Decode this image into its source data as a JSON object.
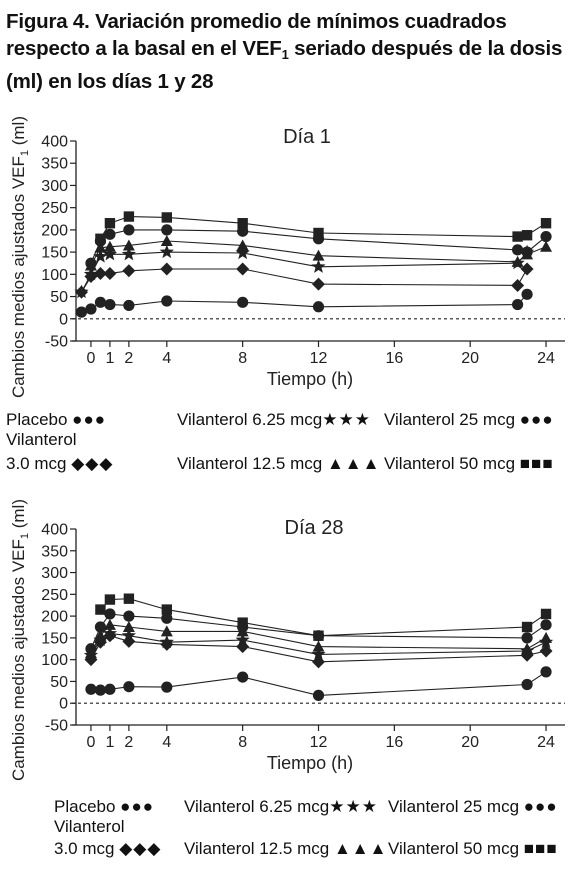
{
  "figure": {
    "title_part1": "Figura 4. Variación promedio de mínimos cuadrados respecto a la basal en el VEF",
    "title_sub": "1",
    "title_part2": " seriado después de la dosis (ml) en los días 1 y 28"
  },
  "colors": {
    "ink": "#222222",
    "background": "#ffffff"
  },
  "legend": {
    "items": [
      {
        "label": "Placebo",
        "marker": "circle"
      },
      {
        "label": "Vilanterol 6.25 mcg",
        "marker": "star"
      },
      {
        "label": "Vilanterol 25 mcg",
        "marker": "circle"
      },
      {
        "label": "Vilanterol",
        "label2": "3.0 mcg",
        "marker": "diamond"
      },
      {
        "label": "Vilanterol 12.5 mcg",
        "marker": "triangle"
      },
      {
        "label": "Vilanterol 50 mcg",
        "marker": "square"
      }
    ]
  },
  "chart_data": [
    {
      "type": "line",
      "title": "Día 1",
      "xlabel": "Tiempo (h)",
      "ylabel": "Cambios medios ajustados VEF",
      "ylabel_sub": "1",
      "ylabel_suffix": " (ml)",
      "xlim": [
        -1,
        25
      ],
      "ylim": [
        -50,
        400
      ],
      "xticks": [
        0,
        1,
        2,
        4,
        8,
        12,
        16,
        20,
        24
      ],
      "yticks": [
        -50,
        0,
        50,
        100,
        150,
        200,
        250,
        300,
        350,
        400
      ],
      "reference_line": 0,
      "x": [
        -0.5,
        0,
        0.5,
        1,
        2,
        4,
        8,
        12,
        22.5,
        23,
        24
      ],
      "series": [
        {
          "name": "Placebo",
          "marker": "circle",
          "values": [
            15,
            22,
            37,
            32,
            30,
            40,
            37,
            27,
            32,
            55,
            null
          ]
        },
        {
          "name": "Vilanterol 3.0 mcg",
          "marker": "diamond",
          "values": [
            60,
            95,
            102,
            102,
            108,
            112,
            112,
            78,
            75,
            112,
            null
          ]
        },
        {
          "name": "Vilanterol 6.25 mcg",
          "marker": "star",
          "values": [
            60,
            100,
            140,
            145,
            145,
            150,
            148,
            117,
            125,
            150,
            null
          ]
        },
        {
          "name": "Vilanterol 12.5 mcg",
          "marker": "triangle",
          "values": [
            null,
            120,
            160,
            162,
            165,
            175,
            165,
            142,
            128,
            145,
            162
          ]
        },
        {
          "name": "Vilanterol 25 mcg",
          "marker": "circle",
          "values": [
            null,
            125,
            175,
            190,
            200,
            200,
            197,
            180,
            155,
            150,
            185
          ]
        },
        {
          "name": "Vilanterol 50 mcg",
          "marker": "square",
          "values": [
            null,
            null,
            180,
            215,
            230,
            228,
            215,
            193,
            185,
            188,
            215
          ]
        }
      ]
    },
    {
      "type": "line",
      "title": "Día 28",
      "xlabel": "Tiempo (h)",
      "ylabel": "Cambios medios ajustados VEF",
      "ylabel_sub": "1",
      "ylabel_suffix": " (ml)",
      "xlim": [
        -1,
        25
      ],
      "ylim": [
        -50,
        400
      ],
      "xticks": [
        0,
        1,
        2,
        4,
        8,
        12,
        16,
        20,
        24
      ],
      "yticks": [
        -50,
        0,
        50,
        100,
        150,
        200,
        250,
        300,
        350,
        400
      ],
      "reference_line": 0,
      "x": [
        0,
        0.5,
        1,
        2,
        4,
        8,
        12,
        23,
        24
      ],
      "series": [
        {
          "name": "Placebo",
          "marker": "circle",
          "values": [
            32,
            30,
            32,
            38,
            37,
            60,
            18,
            43,
            72
          ]
        },
        {
          "name": "Vilanterol 3.0 mcg",
          "marker": "diamond",
          "values": [
            100,
            140,
            155,
            142,
            135,
            130,
            95,
            110,
            120
          ]
        },
        {
          "name": "Vilanterol 6.25 mcg",
          "marker": "star",
          "values": [
            110,
            145,
            160,
            155,
            140,
            145,
            112,
            120,
            140
          ]
        },
        {
          "name": "Vilanterol 12.5 mcg",
          "marker": "triangle",
          "values": [
            115,
            155,
            180,
            175,
            165,
            165,
            130,
            125,
            150
          ]
        },
        {
          "name": "Vilanterol 25 mcg",
          "marker": "circle",
          "values": [
            125,
            175,
            205,
            200,
            195,
            175,
            155,
            150,
            180
          ]
        },
        {
          "name": "Vilanterol 50 mcg",
          "marker": "square",
          "values": [
            null,
            215,
            238,
            240,
            215,
            185,
            155,
            175,
            205
          ]
        }
      ]
    }
  ]
}
